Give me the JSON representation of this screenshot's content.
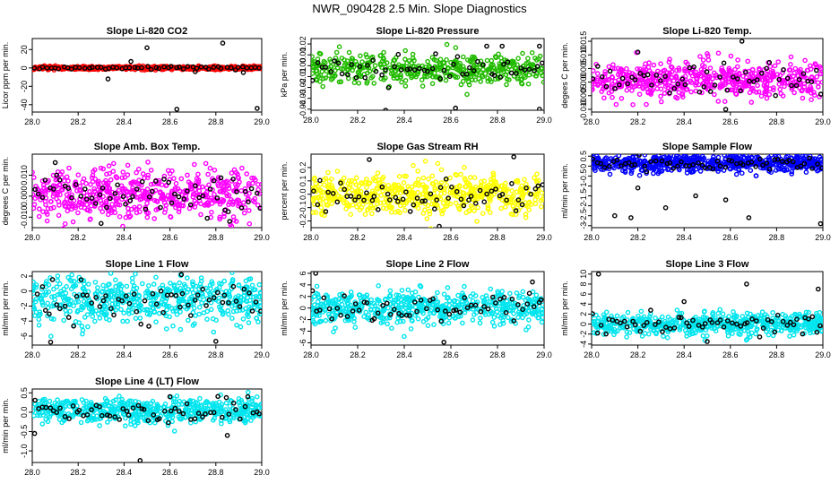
{
  "page_title": "NWR_090428  2.5 Min. Slope Diagnostics",
  "chart_data": [
    {
      "id": "co2",
      "type": "scatter",
      "title": "Slope Li-820 CO2",
      "ylabel": "Licor ppm per min.",
      "color": "#ff0000",
      "xlim": [
        28.0,
        29.0
      ],
      "xticks": [
        "28.0",
        "28.2",
        "28.4",
        "28.6",
        "28.8",
        "29.0"
      ],
      "ylim": [
        -48,
        32
      ],
      "yticks": [
        -40,
        -20,
        0,
        20
      ],
      "ytick_labels": [
        "-40",
        "-20",
        "0",
        "20"
      ],
      "center": 0,
      "spread": 0.9,
      "outliers": [
        [
          28.33,
          -12
        ],
        [
          28.5,
          22
        ],
        [
          28.63,
          -45
        ],
        [
          28.83,
          27
        ],
        [
          28.98,
          -44
        ],
        [
          28.92,
          -5
        ],
        [
          28.43,
          7
        ],
        [
          28.71,
          -4
        ]
      ],
      "n_main": 600,
      "n_black": 55
    },
    {
      "id": "pressure",
      "type": "scatter",
      "title": "Slope Li-820 Pressure",
      "ylabel": "kPa per min.",
      "color": "#22bb00",
      "xlim": [
        28.0,
        29.0
      ],
      "xticks": [
        "28.0",
        "28.2",
        "28.4",
        "28.6",
        "28.8",
        "29.0"
      ],
      "ylim": [
        -0.041,
        0.025
      ],
      "yticks": [
        -0.04,
        -0.03,
        -0.02,
        -0.01,
        0.0,
        0.01,
        0.02
      ],
      "ytick_labels": [
        "-0.04",
        "-0.03",
        "-0.02",
        "-0.01",
        "0.00",
        "0.01",
        "0.02"
      ],
      "center": -0.003,
      "spread": 0.007,
      "outliers": [
        [
          28.32,
          -0.041
        ],
        [
          28.62,
          -0.039
        ],
        [
          28.98,
          -0.04
        ],
        [
          28.82,
          0.018
        ],
        [
          28.98,
          0.018
        ]
      ],
      "n_main": 450,
      "n_black": 55
    },
    {
      "id": "temp",
      "type": "scatter",
      "title": "Slope Li-820 Temp.",
      "ylabel": "degees C per min.",
      "color": "#ff00ff",
      "xlim": [
        28.0,
        29.0
      ],
      "xticks": [
        "28.0",
        "28.2",
        "28.4",
        "28.6",
        "28.8",
        "29.0"
      ],
      "ylim": [
        -0.011,
        0.016
      ],
      "yticks": [
        -0.01,
        -0.005,
        0.0,
        0.005,
        0.01,
        0.015
      ],
      "ytick_labels": [
        "-0.010",
        "-0.005",
        "0.000",
        "0.005",
        "0.010",
        "0.015"
      ],
      "center": 0.0005,
      "spread": 0.0035,
      "outliers": [
        [
          28.65,
          0.015
        ],
        [
          28.58,
          -0.01
        ],
        [
          28.2,
          0.011
        ]
      ],
      "n_main": 550,
      "n_black": 55
    },
    {
      "id": "ambbox",
      "type": "scatter",
      "title": "Slope Amb. Box Temp.",
      "ylabel": "degrees C per min.",
      "color": "#ff00ff",
      "xlim": [
        28.0,
        29.0
      ],
      "xticks": [
        "28.0",
        "28.2",
        "28.4",
        "28.6",
        "28.8",
        "29.0"
      ],
      "ylim": [
        -0.015,
        0.02
      ],
      "yticks": [
        -0.01,
        0.0,
        0.01
      ],
      "ytick_labels": [
        "-0.010",
        "0.000",
        "0.010"
      ],
      "center": 0.0015,
      "spread": 0.006,
      "outliers": [
        [
          28.3,
          -0.013
        ],
        [
          28.1,
          0.016
        ],
        [
          28.86,
          -0.012
        ]
      ],
      "n_main": 550,
      "n_black": 60
    },
    {
      "id": "rh",
      "type": "scatter",
      "title": "Slope Gas Stream RH",
      "ylabel": "percent per min.",
      "color": "#ffff00",
      "xlim": [
        28.0,
        29.0
      ],
      "xticks": [
        "28.0",
        "28.2",
        "28.4",
        "28.6",
        "28.8",
        "29.0"
      ],
      "ylim": [
        -0.25,
        0.3
      ],
      "yticks": [
        -0.2,
        -0.1,
        0.0,
        0.1,
        0.2
      ],
      "ytick_labels": [
        "-0.2",
        "-0.1",
        "0.0",
        "0.1",
        "0.2"
      ],
      "center": 0.0,
      "spread": 0.08,
      "outliers": [
        [
          28.87,
          0.28
        ],
        [
          28.55,
          -0.24
        ],
        [
          28.25,
          0.26
        ]
      ],
      "n_main": 550,
      "n_black": 60
    },
    {
      "id": "sample",
      "type": "scatter",
      "title": "Slope Sample Flow",
      "ylabel": "ml/min per min.",
      "color": "#0000ff",
      "xlim": [
        28.0,
        29.0
      ],
      "xticks": [
        "28.0",
        "28.2",
        "28.4",
        "28.6",
        "28.8",
        "29.0"
      ],
      "ylim": [
        -3.1,
        0.6
      ],
      "yticks": [
        -3.0,
        -2.5,
        -2.0,
        -1.5,
        -1.0,
        -0.5,
        0.0,
        0.5
      ],
      "ytick_labels": [
        "-3",
        "-2.5",
        "-2",
        "-1.5",
        "-1",
        "-0.5",
        "0",
        "0.5"
      ],
      "center": 0.15,
      "spread": 0.22,
      "outliers": [
        [
          28.1,
          -2.5
        ],
        [
          28.17,
          -2.6
        ],
        [
          28.32,
          -2.1
        ],
        [
          28.68,
          -2.6
        ],
        [
          28.99,
          -2.9
        ],
        [
          28.45,
          -1.5
        ],
        [
          28.2,
          -1.1
        ],
        [
          28.58,
          -1.7
        ]
      ],
      "n_main": 600,
      "n_black": 60
    },
    {
      "id": "line1",
      "type": "scatter",
      "title": "Slope Line 1 Flow",
      "ylabel": "ml/min per min.",
      "color": "#00e5ee",
      "xlim": [
        28.0,
        29.0
      ],
      "xticks": [
        "28.0",
        "28.2",
        "28.4",
        "28.6",
        "28.8",
        "29.0"
      ],
      "ylim": [
        -7.2,
        2.6
      ],
      "yticks": [
        -6,
        -4,
        -2,
        0,
        2
      ],
      "ytick_labels": [
        "-6",
        "-4",
        "-2",
        "0",
        "2"
      ],
      "center": -1.2,
      "spread": 1.6,
      "outliers": [
        [
          28.08,
          -6.8
        ],
        [
          28.8,
          -6.7
        ],
        [
          28.65,
          2.2
        ]
      ],
      "n_main": 550,
      "n_black": 60
    },
    {
      "id": "line2",
      "type": "scatter",
      "title": "Slope Line 2 Flow",
      "ylabel": "ml/min per min.",
      "color": "#00e5ee",
      "xlim": [
        28.0,
        29.0
      ],
      "xticks": [
        "28.0",
        "28.2",
        "28.4",
        "28.6",
        "28.8",
        "29.0"
      ],
      "ylim": [
        -6.4,
        6.3
      ],
      "yticks": [
        -6,
        -4,
        -2,
        0,
        2,
        4,
        6
      ],
      "ytick_labels": [
        "-6",
        "-4",
        "-2",
        "0",
        "2",
        "4",
        "6"
      ],
      "center": 0.0,
      "spread": 1.4,
      "outliers": [
        [
          28.02,
          6.0
        ],
        [
          28.57,
          -5.9
        ],
        [
          28.95,
          4.5
        ]
      ],
      "n_main": 550,
      "n_black": 60
    },
    {
      "id": "line3",
      "type": "scatter",
      "title": "Slope Line 3 Flow",
      "ylabel": "ml/min per min.",
      "color": "#00e5ee",
      "xlim": [
        28.0,
        29.0
      ],
      "xticks": [
        "28.0",
        "28.2",
        "28.4",
        "28.6",
        "28.8",
        "29.0"
      ],
      "ylim": [
        -4.2,
        10.5
      ],
      "yticks": [
        -4,
        -2,
        0,
        2,
        4,
        6,
        8,
        10
      ],
      "ytick_labels": [
        "-4",
        "-2",
        "0",
        "2",
        "4",
        "6",
        "8",
        "10"
      ],
      "center": 0.0,
      "spread": 1.1,
      "outliers": [
        [
          28.03,
          10
        ],
        [
          28.67,
          8
        ],
        [
          28.98,
          7
        ],
        [
          28.4,
          4.5
        ],
        [
          28.5,
          -3.5
        ]
      ],
      "n_main": 550,
      "n_black": 60
    },
    {
      "id": "line4",
      "type": "scatter",
      "title": "Slope Line 4 (LT) Flow",
      "ylabel": "ml/min per min.",
      "color": "#00e5ee",
      "xlim": [
        28.0,
        29.0
      ],
      "xticks": [
        "28.0",
        "28.2",
        "28.4",
        "28.6",
        "28.8",
        "29.0"
      ],
      "ylim": [
        -1.3,
        0.6
      ],
      "yticks": [
        -1.0,
        -0.5,
        0.0,
        0.5
      ],
      "ytick_labels": [
        "-1.0",
        "-0.5",
        "0.0",
        "0.5"
      ],
      "center": 0.05,
      "spread": 0.16,
      "outliers": [
        [
          28.47,
          -1.25
        ],
        [
          28.01,
          -0.55
        ],
        [
          28.85,
          -0.6
        ],
        [
          28.6,
          0.4
        ]
      ],
      "n_main": 550,
      "n_black": 60
    }
  ]
}
